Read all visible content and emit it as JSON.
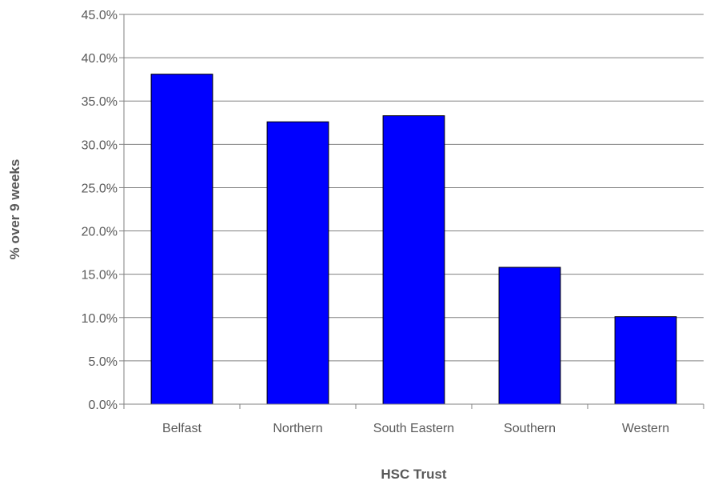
{
  "chart_data": {
    "type": "bar",
    "categories": [
      "Belfast",
      "Northern",
      "South Eastern",
      "Southern",
      "Western"
    ],
    "values": [
      38.1,
      32.6,
      33.3,
      15.8,
      10.1
    ],
    "xlabel": "HSC Trust",
    "ylabel": "% over  9 weeks",
    "ylim": [
      0,
      45
    ],
    "ytick_step": 5,
    "ytick_labels": [
      "0.0%",
      "5.0%",
      "10.0%",
      "15.0%",
      "20.0%",
      "25.0%",
      "30.0%",
      "35.0%",
      "40.0%",
      "45.0%"
    ],
    "grid": true,
    "legend": "none",
    "bar_color": "#0000FF"
  }
}
